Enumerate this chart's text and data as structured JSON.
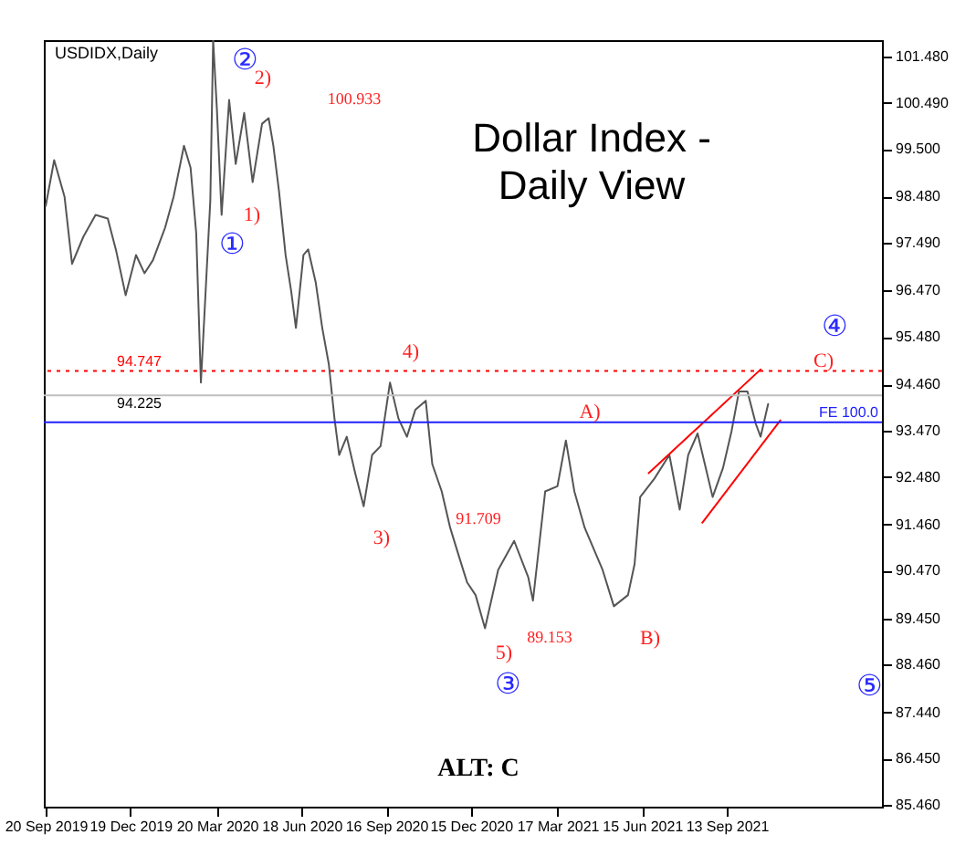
{
  "chart_data": {
    "type": "line",
    "title": "USDIDX,Daily",
    "subtitle": "Dollar Index - Daily View",
    "series": [
      {
        "color": "#555555",
        "x": [
          "2019-09-20",
          "2019-09-29",
          "2019-10-10",
          "2019-10-18",
          "2019-10-30",
          "2019-11-12",
          "2019-11-25",
          "2019-12-04",
          "2019-12-14",
          "2019-12-25",
          "2020-01-03",
          "2020-01-12",
          "2020-01-25",
          "2020-02-03",
          "2020-02-14",
          "2020-02-21",
          "2020-02-27",
          "2020-03-03",
          "2020-03-09",
          "2020-03-13",
          "2020-03-16",
          "2020-03-20",
          "2020-03-25",
          "2020-04-02",
          "2020-04-09",
          "2020-04-18",
          "2020-04-27",
          "2020-05-07",
          "2020-05-14",
          "2020-05-19",
          "2020-05-25",
          "2020-06-01",
          "2020-06-07",
          "2020-06-12",
          "2020-06-20",
          "2020-06-25",
          "2020-07-03",
          "2020-07-10",
          "2020-07-17",
          "2020-07-23",
          "2020-07-28",
          "2020-08-05",
          "2020-08-14",
          "2020-08-23",
          "2020-09-01",
          "2020-09-10",
          "2020-09-20",
          "2020-09-29",
          "2020-10-08",
          "2020-10-17",
          "2020-10-28",
          "2020-11-04",
          "2020-11-14",
          "2020-11-23",
          "2020-12-02",
          "2020-12-11",
          "2020-12-20",
          "2020-12-30",
          "2021-01-13",
          "2021-01-30",
          "2021-02-14",
          "2021-02-19",
          "2021-03-04",
          "2021-03-17",
          "2021-03-26",
          "2021-04-04",
          "2021-04-15",
          "2021-05-04",
          "2021-05-16",
          "2021-05-31",
          "2021-06-07",
          "2021-06-13",
          "2021-06-28",
          "2021-07-14",
          "2021-07-25",
          "2021-08-03",
          "2021-08-13",
          "2021-08-29",
          "2021-09-09",
          "2021-09-18",
          "2021-09-26",
          "2021-10-05",
          "2021-10-14",
          "2021-10-19",
          "2021-10-27"
        ],
        "values": [
          98.28,
          99.26,
          98.48,
          97.04,
          97.62,
          98.09,
          98.01,
          97.31,
          96.37,
          97.23,
          96.84,
          97.12,
          97.82,
          98.48,
          99.57,
          99.1,
          97.7,
          94.5,
          96.84,
          98.4,
          101.83,
          100.35,
          98.09,
          100.55,
          99.18,
          100.27,
          98.79,
          100.04,
          100.16,
          99.57,
          98.6,
          97.23,
          96.45,
          95.67,
          97.23,
          97.35,
          96.65,
          95.67,
          94.89,
          93.73,
          92.95,
          93.34,
          92.56,
          91.85,
          92.95,
          93.14,
          94.5,
          93.73,
          93.34,
          93.92,
          94.11,
          92.75,
          92.17,
          91.39,
          90.8,
          90.22,
          89.95,
          89.24,
          90.49,
          91.11,
          90.33,
          89.83,
          92.17,
          92.28,
          93.26,
          92.17,
          91.39,
          90.49,
          89.71,
          89.95,
          90.61,
          92.05,
          92.44,
          92.95,
          91.78,
          92.95,
          93.41,
          92.05,
          92.67,
          93.45,
          94.31,
          94.31,
          93.61,
          93.34,
          94.04
        ]
      },
      {
        "color": "#ff0000",
        "x": [
          "2021-06-22",
          "2021-10-19"
        ],
        "values": [
          92.56,
          94.78
        ]
      },
      {
        "color": "#ff0000",
        "x": [
          "2021-08-18",
          "2021-11-09"
        ],
        "values": [
          91.5,
          93.69
        ]
      }
    ],
    "xlim": [
      "2019-09-18",
      "2022-02-25"
    ],
    "xticks": [
      {
        "value": "2019-09-20",
        "label": "20 Sep 2019"
      },
      {
        "value": "2019-12-19",
        "label": "19 Dec 2019"
      },
      {
        "value": "2020-03-20",
        "label": "20 Mar 2020"
      },
      {
        "value": "2020-06-18",
        "label": "18 Jun 2020"
      },
      {
        "value": "2020-09-16",
        "label": "16 Sep 2020"
      },
      {
        "value": "2020-12-15",
        "label": "15 Dec 2020"
      },
      {
        "value": "2021-03-17",
        "label": "17 Mar 2021"
      },
      {
        "value": "2021-06-15",
        "label": "15 Jun 2021"
      },
      {
        "value": "2021-09-13",
        "label": "13 Sep 2021"
      }
    ],
    "ylim": [
      85.42,
      101.83
    ],
    "yticks": [
      {
        "value": 101.48,
        "label": "101.480"
      },
      {
        "value": 100.49,
        "label": "100.490"
      },
      {
        "value": 99.5,
        "label": "99.500"
      },
      {
        "value": 98.48,
        "label": "98.480"
      },
      {
        "value": 97.49,
        "label": "97.490"
      },
      {
        "value": 96.47,
        "label": "96.470"
      },
      {
        "value": 95.48,
        "label": "95.480"
      },
      {
        "value": 94.46,
        "label": "94.460"
      },
      {
        "value": 93.47,
        "label": "93.470"
      },
      {
        "value": 92.48,
        "label": "92.480"
      },
      {
        "value": 91.46,
        "label": "91.460"
      },
      {
        "value": 90.47,
        "label": "90.470"
      },
      {
        "value": 89.45,
        "label": "89.450"
      },
      {
        "value": 88.46,
        "label": "88.460"
      },
      {
        "value": 87.44,
        "label": "87.440"
      },
      {
        "value": 86.45,
        "label": "86.450"
      },
      {
        "value": 85.46,
        "label": "85.460"
      }
    ],
    "ref_lines": [
      {
        "axis": "y",
        "value": 94.747,
        "label": "94.747",
        "color": "#ff0000",
        "line_style": "dotted"
      },
      {
        "axis": "y",
        "value": 94.225,
        "label": "94.225",
        "color": "#c0c0c0",
        "line_style": "solid"
      },
      {
        "axis": "y",
        "value": 93.65,
        "label": "FE 100.0",
        "color": "#2020ff",
        "line_style": "solid"
      }
    ],
    "annotations": [
      "1)",
      "2)",
      "3)",
      "4)",
      "5)",
      "A)",
      "B)",
      "C)",
      "①",
      "②",
      "③",
      "④",
      "⑤",
      "100.933",
      "91.709",
      "89.153",
      "ALT: C"
    ],
    "grid": false,
    "marker": "none",
    "line_style": "solid"
  }
}
